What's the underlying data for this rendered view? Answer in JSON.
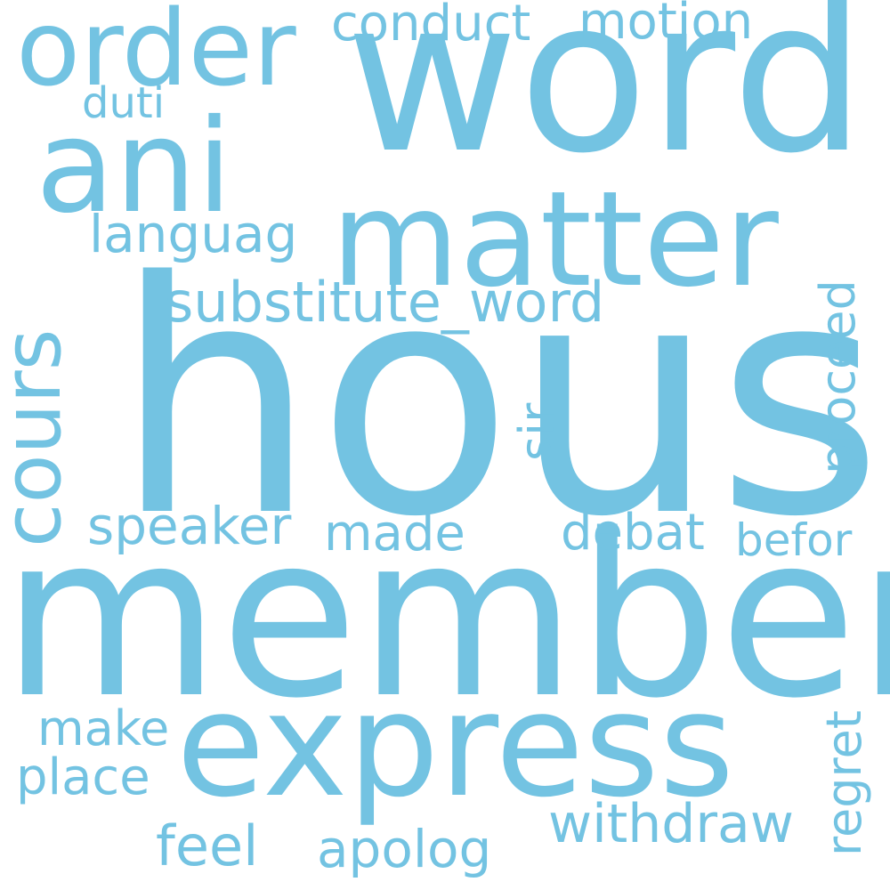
{
  "color": "#73c3e2",
  "background": "#ffffff",
  "words": {
    "hous": "hous",
    "member": "member",
    "word": "word",
    "express": "express",
    "matter": "matter",
    "ani": "ani",
    "order": "order",
    "cours": "cours",
    "substitute_word": "substitute_word",
    "conduct": "conduct",
    "motion": "motion",
    "duti": "duti",
    "languag": "languag",
    "proceed": "proceed",
    "sir": "sir",
    "speaker": "speaker",
    "made": "made",
    "debat": "debat",
    "befor": "befor",
    "regret": "regret",
    "make": "make",
    "place": "place",
    "withdraw": "withdraw",
    "feel": "feel",
    "apolog": "apolog"
  }
}
